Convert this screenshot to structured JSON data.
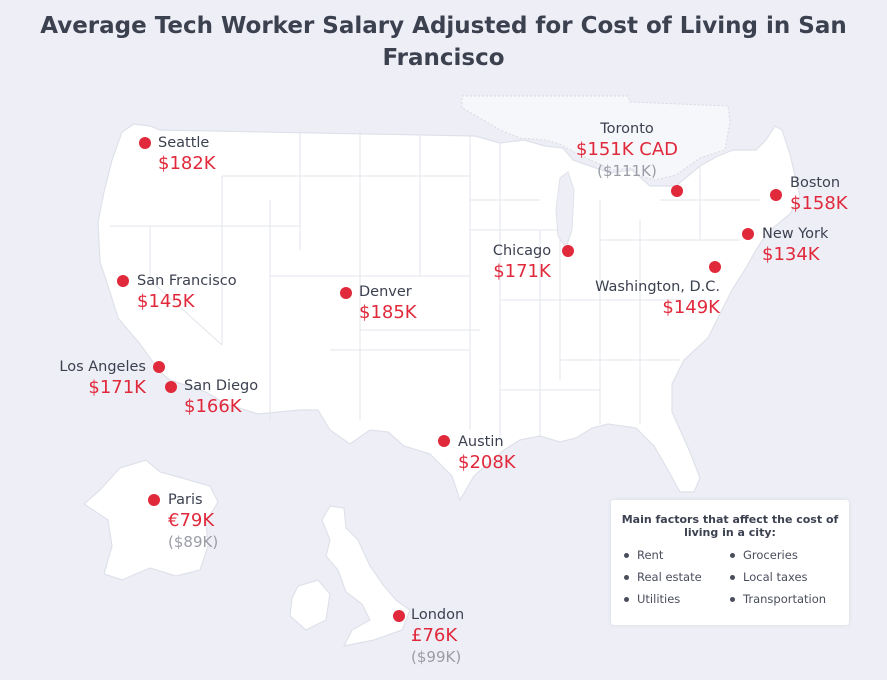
{
  "title": {
    "line1": "Average Tech Worker Salary Adjusted for Cost of Living in San",
    "line2": "Francisco"
  },
  "colors": {
    "accent": "#e0293b",
    "text": "#3c4150",
    "muted": "#9a9ca6",
    "background": "#eeeff6"
  },
  "cities": [
    {
      "name": "Seattle",
      "salary": "$182K"
    },
    {
      "name": "San Francisco",
      "salary": "$145K"
    },
    {
      "name": "Los Angeles",
      "salary": "$171K"
    },
    {
      "name": "San Diego",
      "salary": "$166K"
    },
    {
      "name": "Denver",
      "salary": "$185K"
    },
    {
      "name": "Austin",
      "salary": "$208K"
    },
    {
      "name": "Chicago",
      "salary": "$171K"
    },
    {
      "name": "Toronto",
      "salary": "$151K CAD",
      "converted": "($111K)"
    },
    {
      "name": "Boston",
      "salary": "$158K"
    },
    {
      "name": "New York",
      "salary": "$134K"
    },
    {
      "name": "Washington, D.C.",
      "salary": "$149K"
    },
    {
      "name": "Paris",
      "salary": "€79K",
      "converted": "($89K)"
    },
    {
      "name": "London",
      "salary": "£76K",
      "converted": "($99K)"
    }
  ],
  "factors": {
    "title": "Main factors that affect the cost of living in a city:",
    "items": [
      "Rent",
      "Groceries",
      "Real estate",
      "Local taxes",
      "Utilities",
      "Transportation"
    ]
  }
}
